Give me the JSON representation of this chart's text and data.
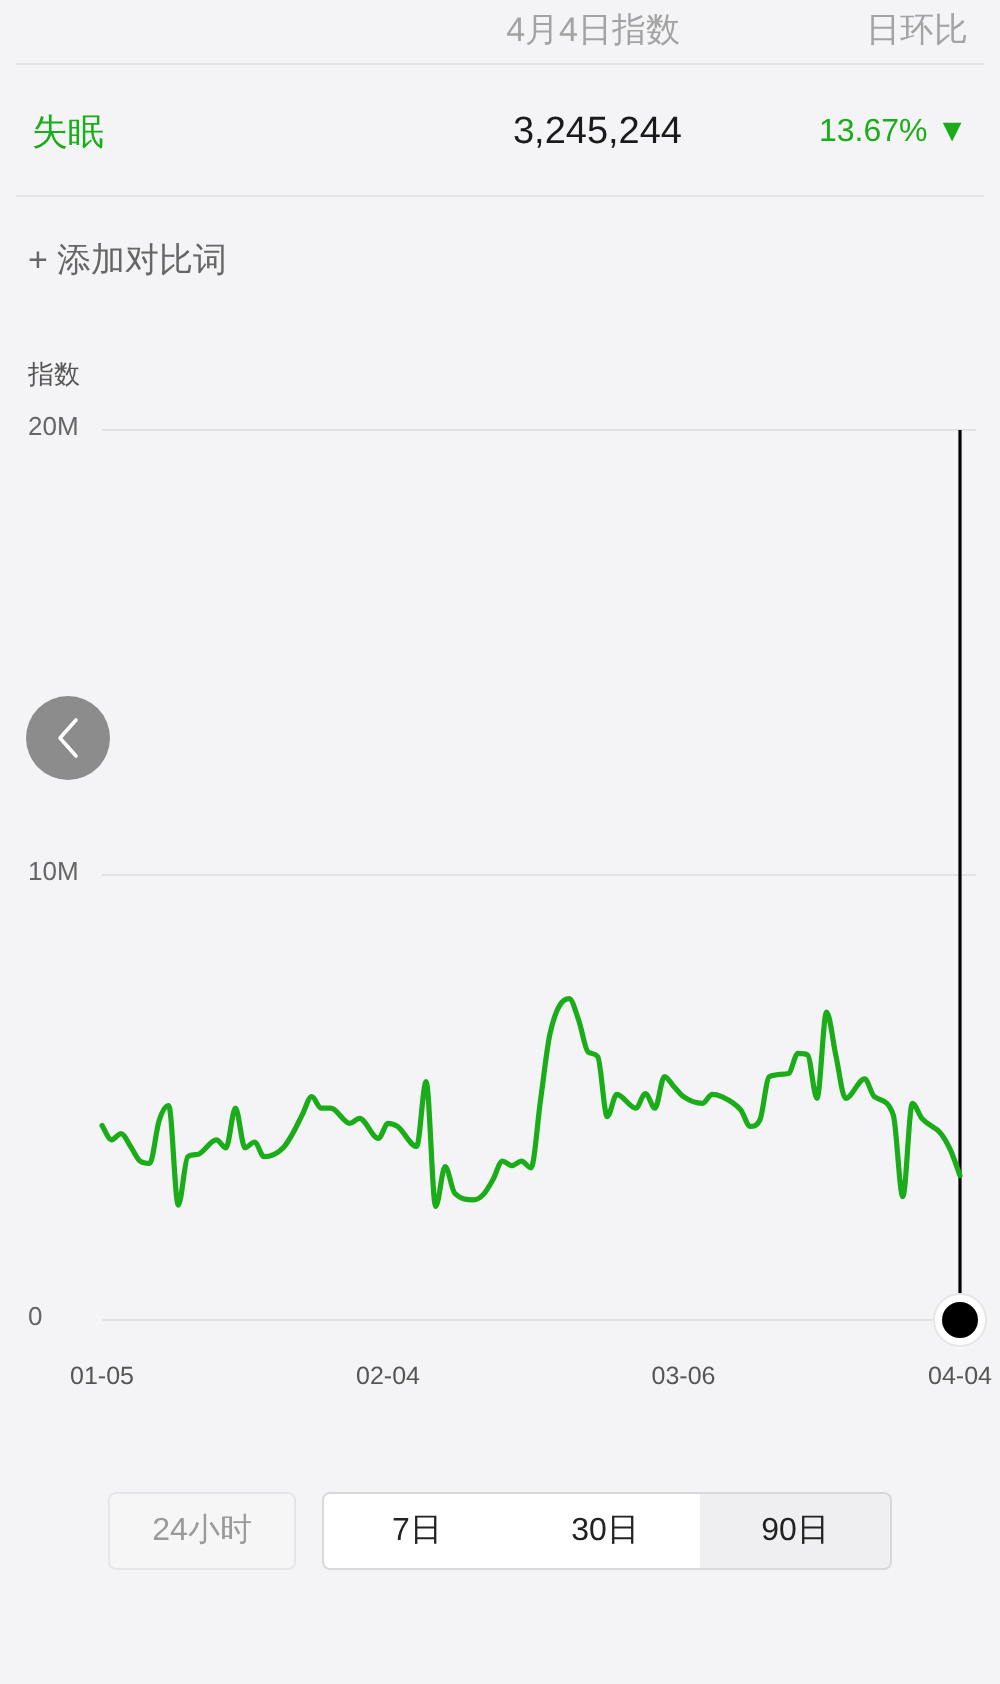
{
  "chart_data": {
    "type": "line",
    "ylabel": "指数",
    "annotations": [
      "4月4日指数",
      "日环比",
      "3,245,244",
      "13.67% ▼",
      "+ 添加对比词",
      "24小时",
      "7日",
      "30日",
      "90日"
    ],
    "x": [
      "--01-05",
      "--01-06",
      "--01-07",
      "--01-08",
      "--01-09",
      "--01-10",
      "--01-11",
      "--01-12",
      "--01-13",
      "--01-14",
      "--01-15",
      "--01-17",
      "--01-18",
      "--01-19",
      "--01-20",
      "--01-21",
      "--01-22",
      "--01-24",
      "--01-25",
      "--01-26",
      "--01-27",
      "--01-28",
      "--01-29",
      "--01-31",
      "--02-01",
      "--02-03",
      "--02-04",
      "--02-05",
      "--02-07",
      "--02-08",
      "--02-09",
      "--02-10",
      "--02-11",
      "--02-13",
      "--02-14",
      "--02-15",
      "--02-16",
      "--02-17",
      "--02-18",
      "--02-19",
      "--02-20",
      "--02-21",
      "--02-23",
      "--02-24",
      "--02-25",
      "--02-26",
      "--02-27",
      "--02-28",
      "--03-01",
      "--03-02",
      "--03-03",
      "--03-04",
      "--03-05",
      "--03-06",
      "--03-08",
      "--03-09",
      "--03-10",
      "--03-12",
      "--03-13",
      "--03-14",
      "--03-15",
      "--03-17",
      "--03-18",
      "--03-19",
      "--03-20",
      "--03-21",
      "--03-22",
      "--03-23",
      "--03-25",
      "--03-26",
      "--03-28",
      "--03-29",
      "--03-30",
      "--03-31",
      "--04-02",
      "--04-03",
      "--04-04"
    ],
    "series": [
      {
        "name": "失眠",
        "color": "#1aad19",
        "values": [
          4370000,
          4050000,
          4190000,
          3900000,
          3570000,
          3520000,
          4490000,
          4820000,
          2580000,
          3670000,
          3720000,
          4050000,
          3870000,
          4760000,
          3870000,
          4000000,
          3670000,
          3870000,
          4190000,
          4610000,
          5020000,
          4760000,
          4760000,
          4420000,
          4530000,
          4080000,
          4420000,
          4350000,
          3900000,
          5360000,
          2550000,
          3450000,
          2850000,
          2700000,
          2820000,
          3150000,
          3570000,
          3470000,
          3570000,
          3420000,
          4940000,
          6440000,
          7220000,
          6740000,
          6020000,
          5920000,
          4570000,
          5070000,
          4760000,
          5090000,
          4760000,
          5470000,
          5240000,
          5020000,
          4870000,
          5070000,
          5020000,
          4720000,
          4350000,
          4490000,
          5470000,
          5540000,
          5990000,
          5960000,
          4980000,
          6920000,
          5920000,
          4980000,
          5420000,
          5020000,
          4610000,
          2770000,
          4870000,
          4530000,
          4190000,
          3820000,
          3245244
        ]
      }
    ],
    "xlim": [
      "--01-05",
      "--04-04"
    ],
    "xticks": [
      {
        "value": "--01-05",
        "label": "01-05"
      },
      {
        "value": "--02-04",
        "label": "02-04"
      },
      {
        "value": "--03-06",
        "label": "03-06"
      },
      {
        "value": "--04-04",
        "label": "04-04"
      }
    ],
    "ylim": [
      0,
      20000000
    ],
    "yticks": [
      0,
      {
        "value": 10000000,
        "label": "10M"
      },
      {
        "value": 20000000,
        "label": "20M"
      }
    ],
    "grid": "y",
    "marker": "none",
    "line_style": "solid",
    "ref_lines": [
      {
        "axis": "x",
        "value": "--04-04",
        "color": "#000000"
      }
    ]
  }
}
